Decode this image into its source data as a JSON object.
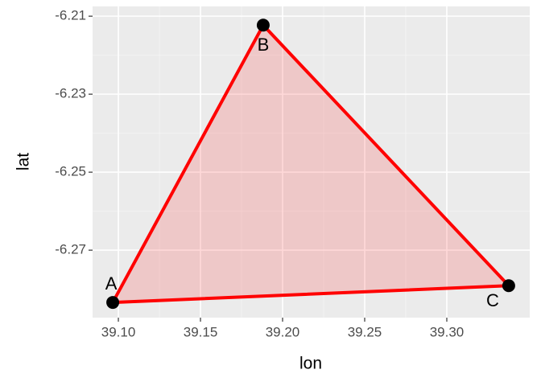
{
  "chart_data": {
    "type": "scatter",
    "x": [
      39.0966,
      39.1882,
      39.3377
    ],
    "values": [
      -6.2834,
      -6.2123,
      -6.2791
    ],
    "labels": [
      "A",
      "B",
      "C"
    ],
    "color": "#ff0000",
    "fill": "polygon",
    "x_label": "lon",
    "y_label": "lat",
    "xlim": [
      39.0843,
      39.3505
    ],
    "ylim": [
      -6.2873,
      -6.2075
    ],
    "xticks": [
      {
        "value": 39.1,
        "label": "39.10"
      },
      39.15,
      {
        "value": 39.2,
        "label": "39.20"
      },
      39.25,
      {
        "value": 39.3,
        "label": "39.30"
      }
    ],
    "yticks": [
      -6.27,
      -6.25,
      -6.23,
      -6.21
    ],
    "grid": true
  }
}
